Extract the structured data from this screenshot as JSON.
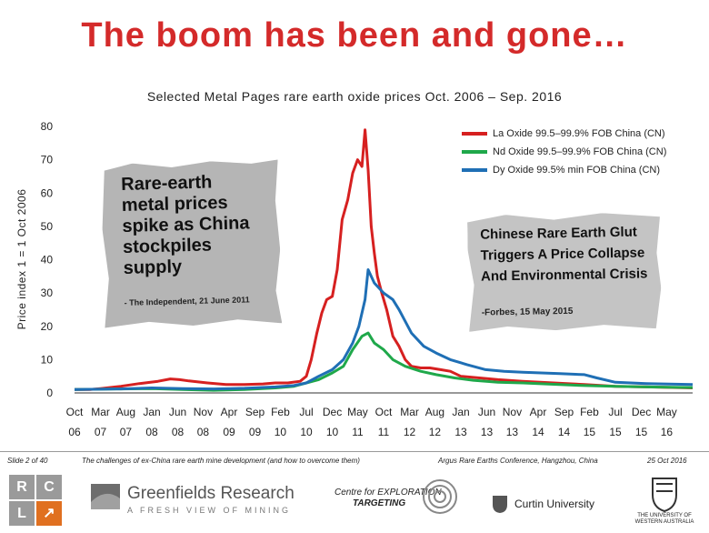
{
  "slide": {
    "title": "The boom has been and gone…",
    "footer_slide": "Slide 2 of 40",
    "footer_talk": "The challenges of ex-China rare earth mine development  (and how to overcome them)",
    "footer_conf": "Argus Rare Earths Conference, Hangzhou, China",
    "footer_date": "25 Oct 2016"
  },
  "logos": {
    "rcl_letters": [
      "R",
      "C",
      "L",
      "↗"
    ],
    "greenfields_name": "Greenfields Research",
    "greenfields_tag": "A FRESH VIEW OF MINING",
    "cet_line1": "Centre for EXPLORATION",
    "cet_line2": "TARGETING",
    "curtin": "Curtin University",
    "uwa": "THE UNIVERSITY OF WESTERN AUSTRALIA"
  },
  "clippings": {
    "independent_headline": "Rare-earth metal prices spike as China stockpiles supply",
    "independent_source": "- The Independent, 21 June 2011",
    "forbes_headline": "Chinese Rare Earth Glut Triggers A Price Collapse And Environmental Crisis",
    "forbes_source": "-Forbes, 15 May 2015"
  },
  "chart_data": {
    "type": "line",
    "title": "Selected Metal Pages rare earth oxide prices Oct. 2006 – Sep. 2016",
    "ylabel": "Price index 1 = 1 Oct 2006",
    "xlabel": "",
    "ylim": [
      0,
      80
    ],
    "yticks": [
      0,
      10,
      20,
      30,
      40,
      50,
      60,
      70,
      80
    ],
    "xlim": [
      2006.75,
      2016.75
    ],
    "xticks": [
      {
        "m": "Oct",
        "y": "06",
        "t": 2006.75
      },
      {
        "m": "Mar",
        "y": "07",
        "t": 2007.17
      },
      {
        "m": "Aug",
        "y": "07",
        "t": 2007.58
      },
      {
        "m": "Jan",
        "y": "08",
        "t": 2008.0
      },
      {
        "m": "Jun",
        "y": "08",
        "t": 2008.42
      },
      {
        "m": "Nov",
        "y": "08",
        "t": 2008.83
      },
      {
        "m": "Apr",
        "y": "09",
        "t": 2009.25
      },
      {
        "m": "Sep",
        "y": "09",
        "t": 2009.67
      },
      {
        "m": "Feb",
        "y": "10",
        "t": 2010.08
      },
      {
        "m": "Jul",
        "y": "10",
        "t": 2010.5
      },
      {
        "m": "Dec",
        "y": "10",
        "t": 2010.92
      },
      {
        "m": "May",
        "y": "11",
        "t": 2011.33
      },
      {
        "m": "Oct",
        "y": "11",
        "t": 2011.75
      },
      {
        "m": "Mar",
        "y": "12",
        "t": 2012.17
      },
      {
        "m": "Aug",
        "y": "12",
        "t": 2012.58
      },
      {
        "m": "Jan",
        "y": "13",
        "t": 2013.0
      },
      {
        "m": "Jun",
        "y": "13",
        "t": 2013.42
      },
      {
        "m": "Nov",
        "y": "13",
        "t": 2013.83
      },
      {
        "m": "Apr",
        "y": "14",
        "t": 2014.25
      },
      {
        "m": "Sep",
        "y": "14",
        "t": 2014.67
      },
      {
        "m": "Feb",
        "y": "15",
        "t": 2015.08
      },
      {
        "m": "Jul",
        "y": "15",
        "t": 2015.5
      },
      {
        "m": "Dec",
        "y": "15",
        "t": 2015.92
      },
      {
        "m": "May",
        "y": "16",
        "t": 2016.33
      }
    ],
    "grid": false,
    "legend_position": "top-right",
    "series": [
      {
        "name": "La Oxide 99.5–99.9% FOB China (CN)",
        "color": "#d62020",
        "x": [
          2006.75,
          2007.0,
          2007.17,
          2007.5,
          2007.8,
          2008.1,
          2008.3,
          2008.45,
          2008.6,
          2008.9,
          2009.2,
          2009.5,
          2009.8,
          2010.0,
          2010.2,
          2010.4,
          2010.5,
          2010.58,
          2010.67,
          2010.75,
          2010.83,
          2010.92,
          2011.0,
          2011.08,
          2011.17,
          2011.25,
          2011.33,
          2011.4,
          2011.45,
          2011.5,
          2011.55,
          2011.6,
          2011.65,
          2011.72,
          2011.8,
          2011.9,
          2012.0,
          2012.1,
          2012.2,
          2012.35,
          2012.5,
          2012.67,
          2012.83,
          2013.0,
          2013.3,
          2013.6,
          2014.0,
          2014.5,
          2015.0,
          2015.5,
          2016.0,
          2016.5,
          2016.75
        ],
        "y": [
          1,
          1,
          1.3,
          2,
          2.8,
          3.5,
          4.2,
          4,
          3.6,
          3,
          2.5,
          2.5,
          2.7,
          3,
          3,
          3.5,
          5,
          10,
          18,
          24,
          28,
          29,
          37,
          52,
          58,
          66,
          70,
          68,
          79,
          67,
          50,
          42,
          35,
          30,
          25,
          17,
          14,
          10,
          8,
          7.5,
          7.5,
          7,
          6.5,
          5,
          4.5,
          4,
          3.5,
          3,
          2.5,
          2,
          1.8,
          1.6,
          1.5
        ]
      },
      {
        "name": "Nd Oxide 99.5–99.9% FOB China (CN)",
        "color": "#1fa84a",
        "x": [
          2006.75,
          2007.5,
          2008.0,
          2008.5,
          2009.0,
          2009.5,
          2010.0,
          2010.3,
          2010.5,
          2010.7,
          2010.92,
          2011.1,
          2011.25,
          2011.4,
          2011.5,
          2011.6,
          2011.75,
          2011.9,
          2012.1,
          2012.35,
          2012.6,
          2012.9,
          2013.2,
          2013.6,
          2014.0,
          2014.5,
          2015.0,
          2015.5,
          2016.0,
          2016.75
        ],
        "y": [
          1,
          1.2,
          1.3,
          1,
          0.8,
          1,
          1.5,
          2,
          3,
          4,
          6,
          8,
          13,
          17,
          18,
          15,
          13,
          10,
          8,
          6.5,
          5.5,
          4.5,
          3.8,
          3.2,
          3,
          2.6,
          2.2,
          2,
          1.8,
          1.6
        ]
      },
      {
        "name": "Dy Oxide 99.5% min FOB China (CN)",
        "color": "#1f6fb5",
        "x": [
          2006.75,
          2007.5,
          2008.0,
          2008.5,
          2009.0,
          2009.5,
          2010.0,
          2010.3,
          2010.5,
          2010.7,
          2010.92,
          2011.1,
          2011.25,
          2011.35,
          2011.45,
          2011.5,
          2011.6,
          2011.75,
          2011.9,
          2012.0,
          2012.2,
          2012.4,
          2012.6,
          2012.83,
          2013.1,
          2013.4,
          2013.7,
          2014.0,
          2014.3,
          2014.6,
          2015.0,
          2015.2,
          2015.5,
          2016.0,
          2016.75
        ],
        "y": [
          1,
          1.2,
          1.5,
          1.3,
          1.2,
          1.4,
          1.8,
          2.2,
          3,
          5,
          7,
          10,
          15,
          20,
          28,
          37,
          33,
          30,
          28,
          25,
          18,
          14,
          12,
          10,
          8.5,
          7,
          6.5,
          6.2,
          6,
          5.8,
          5.5,
          4.5,
          3.2,
          2.8,
          2.5
        ]
      }
    ]
  }
}
